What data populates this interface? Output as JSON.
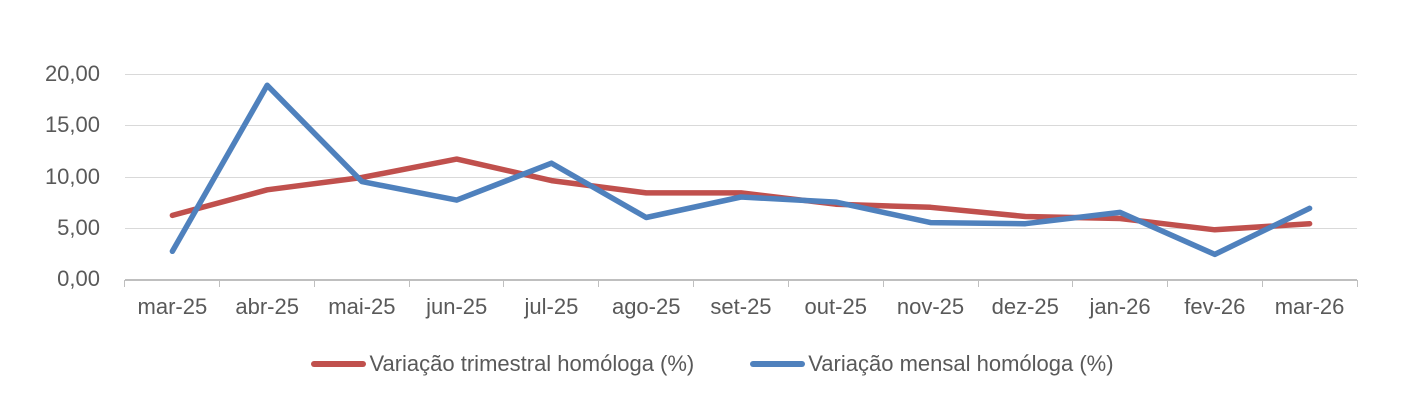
{
  "chart_data": {
    "type": "line",
    "title": "",
    "xlabel": "",
    "ylabel": "",
    "categories": [
      "mar-25",
      "abr-25",
      "mai-25",
      "jun-25",
      "jul-25",
      "ago-25",
      "set-25",
      "out-25",
      "nov-25",
      "dez-25",
      "jan-26",
      "fev-26",
      "mar-26"
    ],
    "series": [
      {
        "name": "Variação trimestral homóloga (%)",
        "color": "#C0504D",
        "values": [
          6.2,
          8.7,
          9.9,
          11.7,
          9.6,
          8.4,
          8.4,
          7.3,
          7.0,
          6.1,
          5.9,
          4.8,
          5.4
        ]
      },
      {
        "name": "Variação mensal homóloga (%)",
        "color": "#4F81BD",
        "values": [
          2.7,
          18.9,
          9.5,
          7.7,
          11.3,
          6.0,
          8.0,
          7.5,
          5.5,
          5.4,
          6.5,
          2.4,
          6.9
        ]
      }
    ],
    "ylim": [
      0,
      20
    ],
    "y_ticks": [
      0,
      5,
      10,
      15,
      20
    ],
    "y_tick_labels": [
      "20,00",
      "15,00",
      "10,00",
      "5,00",
      "0,00"
    ],
    "grid": "horizontal",
    "legend_position": "bottom"
  },
  "style_colors": {
    "axis_text": "#595959",
    "gridline": "#D9D9D9",
    "axis_line": "#BFBFBF",
    "background": "#FFFFFF"
  }
}
